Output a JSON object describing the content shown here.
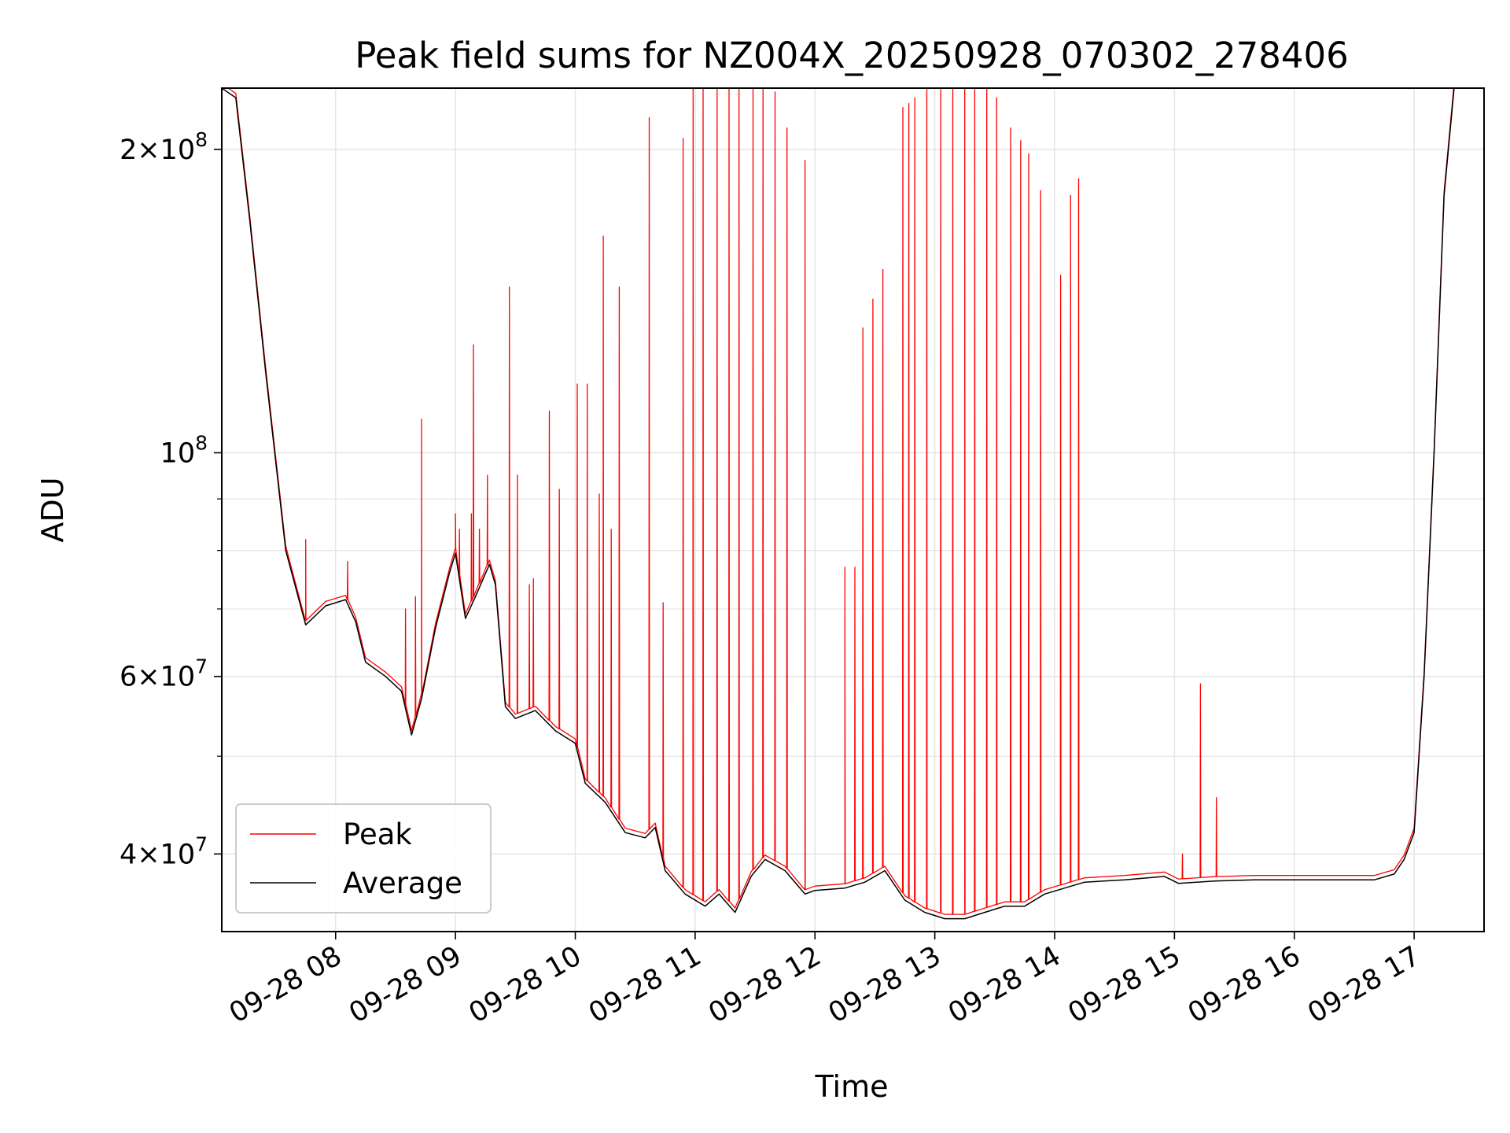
{
  "chart_data": {
    "type": "line",
    "title": "Peak field sums for NZ004X_20250928_070302_278406",
    "xlabel": "Time",
    "ylabel": "ADU",
    "yscale": "log",
    "grid": true,
    "legend_position": "lower-left",
    "xlim": [
      "2025-09-28T07:03",
      "2025-09-28T17:35"
    ],
    "ylim": [
      33500000,
      230000000
    ],
    "x_ticks": [
      {
        "value": "2025-09-28T08:00",
        "label": "09-28 08"
      },
      {
        "value": "2025-09-28T09:00",
        "label": "09-28 09"
      },
      {
        "value": "2025-09-28T10:00",
        "label": "09-28 10"
      },
      {
        "value": "2025-09-28T11:00",
        "label": "09-28 11"
      },
      {
        "value": "2025-09-28T12:00",
        "label": "09-28 12"
      },
      {
        "value": "2025-09-28T13:00",
        "label": "09-28 13"
      },
      {
        "value": "2025-09-28T14:00",
        "label": "09-28 14"
      },
      {
        "value": "2025-09-28T15:00",
        "label": "09-28 15"
      },
      {
        "value": "2025-09-28T16:00",
        "label": "09-28 16"
      },
      {
        "value": "2025-09-28T17:00",
        "label": "09-28 17"
      }
    ],
    "y_ticks": [
      {
        "value": 40000000,
        "mantissa": "4",
        "exponent": "7"
      },
      {
        "value": 60000000,
        "mantissa": "6",
        "exponent": "7"
      },
      {
        "value": 100000000,
        "mantissa": "",
        "exponent": "8"
      },
      {
        "value": 200000000,
        "mantissa": "2",
        "exponent": "8"
      }
    ],
    "y_minor_ticks": [
      50000000,
      70000000,
      80000000,
      90000000
    ],
    "series": [
      {
        "name": "Average",
        "color": "#000000",
        "points": [
          [
            "2025-09-28T07:03",
            230000000
          ],
          [
            "2025-09-28T07:10",
            225000000
          ],
          [
            "2025-09-28T07:17",
            170000000
          ],
          [
            "2025-09-28T07:25",
            120000000
          ],
          [
            "2025-09-28T07:35",
            80000000
          ],
          [
            "2025-09-28T07:45",
            67500000
          ],
          [
            "2025-09-28T07:55",
            70500000
          ],
          [
            "2025-09-28T08:05",
            71500000
          ],
          [
            "2025-09-28T08:10",
            68000000
          ],
          [
            "2025-09-28T08:15",
            62000000
          ],
          [
            "2025-09-28T08:25",
            60000000
          ],
          [
            "2025-09-28T08:33",
            58000000
          ],
          [
            "2025-09-28T08:38",
            52500000
          ],
          [
            "2025-09-28T08:43",
            57000000
          ],
          [
            "2025-09-28T08:50",
            67000000
          ],
          [
            "2025-09-28T08:57",
            76000000
          ],
          [
            "2025-09-28T09:00",
            79500000
          ],
          [
            "2025-09-28T09:05",
            68500000
          ],
          [
            "2025-09-28T09:10",
            72000000
          ],
          [
            "2025-09-28T09:17",
            77500000
          ],
          [
            "2025-09-28T09:20",
            74000000
          ],
          [
            "2025-09-28T09:25",
            56000000
          ],
          [
            "2025-09-28T09:30",
            54500000
          ],
          [
            "2025-09-28T09:40",
            55500000
          ],
          [
            "2025-09-28T09:50",
            53000000
          ],
          [
            "2025-09-28T10:00",
            51500000
          ],
          [
            "2025-09-28T10:05",
            47000000
          ],
          [
            "2025-09-28T10:15",
            45000000
          ],
          [
            "2025-09-28T10:25",
            42000000
          ],
          [
            "2025-09-28T10:35",
            41500000
          ],
          [
            "2025-09-28T10:40",
            42500000
          ],
          [
            "2025-09-28T10:45",
            38500000
          ],
          [
            "2025-09-28T10:55",
            36500000
          ],
          [
            "2025-09-28T11:05",
            35500000
          ],
          [
            "2025-09-28T11:12",
            36500000
          ],
          [
            "2025-09-28T11:20",
            35000000
          ],
          [
            "2025-09-28T11:28",
            38000000
          ],
          [
            "2025-09-28T11:35",
            39500000
          ],
          [
            "2025-09-28T11:45",
            38500000
          ],
          [
            "2025-09-28T11:55",
            36500000
          ],
          [
            "2025-09-28T12:00",
            36800000
          ],
          [
            "2025-09-28T12:15",
            37000000
          ],
          [
            "2025-09-28T12:25",
            37500000
          ],
          [
            "2025-09-28T12:35",
            38500000
          ],
          [
            "2025-09-28T12:45",
            36000000
          ],
          [
            "2025-09-28T12:55",
            35000000
          ],
          [
            "2025-09-28T13:05",
            34500000
          ],
          [
            "2025-09-28T13:15",
            34500000
          ],
          [
            "2025-09-28T13:25",
            35000000
          ],
          [
            "2025-09-28T13:35",
            35500000
          ],
          [
            "2025-09-28T13:45",
            35500000
          ],
          [
            "2025-09-28T13:55",
            36500000
          ],
          [
            "2025-09-28T14:05",
            37000000
          ],
          [
            "2025-09-28T14:15",
            37500000
          ],
          [
            "2025-09-28T14:35",
            37700000
          ],
          [
            "2025-09-28T14:55",
            38000000
          ],
          [
            "2025-09-28T15:02",
            37400000
          ],
          [
            "2025-09-28T15:20",
            37600000
          ],
          [
            "2025-09-28T15:40",
            37700000
          ],
          [
            "2025-09-28T16:00",
            37700000
          ],
          [
            "2025-09-28T16:40",
            37700000
          ],
          [
            "2025-09-28T16:50",
            38200000
          ],
          [
            "2025-09-28T16:55",
            39500000
          ],
          [
            "2025-09-28T17:00",
            42000000
          ],
          [
            "2025-09-28T17:05",
            60000000
          ],
          [
            "2025-09-28T17:10",
            100000000
          ],
          [
            "2025-09-28T17:15",
            180000000
          ],
          [
            "2025-09-28T17:20",
            230000000
          ]
        ]
      },
      {
        "name": "Peak",
        "color": "#ff0000",
        "spikes": [
          [
            "2025-09-28T07:45",
            82000000
          ],
          [
            "2025-09-28T08:06",
            78000000
          ],
          [
            "2025-09-28T08:35",
            70000000
          ],
          [
            "2025-09-28T08:40",
            72000000
          ],
          [
            "2025-09-28T08:43",
            108000000
          ],
          [
            "2025-09-28T09:00",
            87000000
          ],
          [
            "2025-09-28T09:02",
            84000000
          ],
          [
            "2025-09-28T09:08",
            87000000
          ],
          [
            "2025-09-28T09:09",
            128000000
          ],
          [
            "2025-09-28T09:12",
            84000000
          ],
          [
            "2025-09-28T09:16",
            95000000
          ],
          [
            "2025-09-28T09:27",
            146000000
          ],
          [
            "2025-09-28T09:31",
            95000000
          ],
          [
            "2025-09-28T09:37",
            74000000
          ],
          [
            "2025-09-28T09:39",
            75000000
          ],
          [
            "2025-09-28T09:47",
            110000000
          ],
          [
            "2025-09-28T09:52",
            92000000
          ],
          [
            "2025-09-28T10:01",
            117000000
          ],
          [
            "2025-09-28T10:06",
            117000000
          ],
          [
            "2025-09-28T10:12",
            91000000
          ],
          [
            "2025-09-28T10:14",
            164000000
          ],
          [
            "2025-09-28T10:18",
            84000000
          ],
          [
            "2025-09-28T10:22",
            146000000
          ],
          [
            "2025-09-28T10:37",
            215000000
          ],
          [
            "2025-09-28T10:44",
            71000000
          ],
          [
            "2025-09-28T10:54",
            205000000
          ],
          [
            "2025-09-28T10:59",
            230000000
          ],
          [
            "2025-09-28T11:04",
            230000000
          ],
          [
            "2025-09-28T11:11",
            230000000
          ],
          [
            "2025-09-28T11:17",
            230000000
          ],
          [
            "2025-09-28T11:22",
            230000000
          ],
          [
            "2025-09-28T11:29",
            230000000
          ],
          [
            "2025-09-28T11:34",
            230000000
          ],
          [
            "2025-09-28T11:40",
            228000000
          ],
          [
            "2025-09-28T11:46",
            210000000
          ],
          [
            "2025-09-28T11:55",
            195000000
          ],
          [
            "2025-09-28T12:15",
            77000000
          ],
          [
            "2025-09-28T12:20",
            77000000
          ],
          [
            "2025-09-28T12:24",
            133000000
          ],
          [
            "2025-09-28T12:29",
            142000000
          ],
          [
            "2025-09-28T12:34",
            152000000
          ],
          [
            "2025-09-28T12:44",
            220000000
          ],
          [
            "2025-09-28T12:47",
            222000000
          ],
          [
            "2025-09-28T12:50",
            225000000
          ],
          [
            "2025-09-28T12:56",
            230000000
          ],
          [
            "2025-09-28T13:03",
            230000000
          ],
          [
            "2025-09-28T13:09",
            230000000
          ],
          [
            "2025-09-28T13:15",
            230000000
          ],
          [
            "2025-09-28T13:20",
            230000000
          ],
          [
            "2025-09-28T13:26",
            230000000
          ],
          [
            "2025-09-28T13:31",
            225000000
          ],
          [
            "2025-09-28T13:38",
            210000000
          ],
          [
            "2025-09-28T13:43",
            204000000
          ],
          [
            "2025-09-28T13:47",
            198000000
          ],
          [
            "2025-09-28T13:53",
            182000000
          ],
          [
            "2025-09-28T14:03",
            150000000
          ],
          [
            "2025-09-28T14:08",
            180000000
          ],
          [
            "2025-09-28T14:12",
            187000000
          ],
          [
            "2025-09-28T15:04",
            40000000
          ],
          [
            "2025-09-28T15:13",
            59000000
          ],
          [
            "2025-09-28T15:21",
            45500000
          ]
        ]
      }
    ],
    "legend": [
      {
        "name": "Peak",
        "color": "#ff0000"
      },
      {
        "name": "Average",
        "color": "#000000"
      }
    ]
  }
}
